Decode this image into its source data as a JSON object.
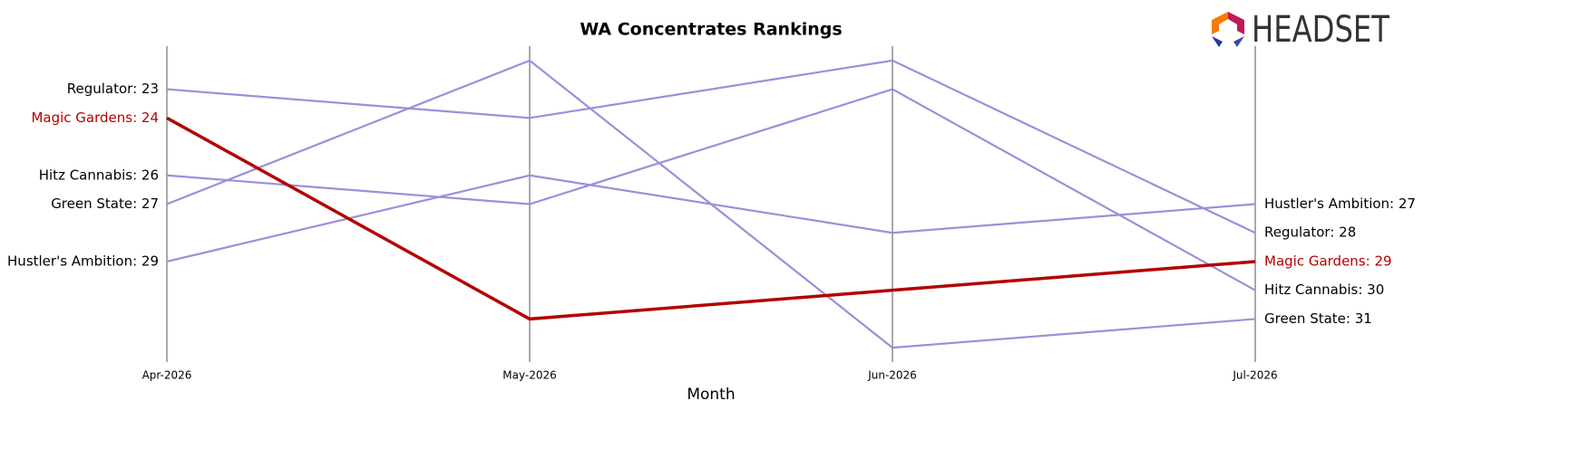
{
  "chart_data": {
    "type": "bump",
    "title": "WA Concentrates Rankings",
    "x_label": "Month",
    "logo": "HEADSET",
    "categories": [
      "Apr-2026",
      "May-2026",
      "Jun-2026",
      "Jul-2026"
    ],
    "ylim": [
      32.5,
      21.5
    ],
    "series": [
      {
        "name": "Regulator",
        "color": "#9b8fd8",
        "values": [
          23,
          24,
          22,
          28
        ],
        "value_labels": [
          "Regulator: 23",
          null,
          null,
          "Regulator: 28"
        ]
      },
      {
        "name": "Hitz Cannabis",
        "color": "#9b8fd8",
        "values": [
          26,
          27,
          23,
          30
        ],
        "value_labels": [
          "Hitz Cannabis: 26",
          null,
          null,
          "Hitz Cannabis: 30"
        ]
      },
      {
        "name": "Green State",
        "color": "#9b8fd8",
        "values": [
          27,
          22,
          32,
          31
        ],
        "value_labels": [
          "Green State: 27",
          null,
          null,
          "Green State: 31"
        ]
      },
      {
        "name": "Hustler's Ambition",
        "color": "#9b8fd8",
        "values": [
          29,
          26,
          28,
          27
        ],
        "value_labels": [
          "Hustler's Ambition: 29",
          null,
          null,
          "Hustler's Ambition: 27"
        ]
      },
      {
        "name": "Magic Gardens",
        "color": "#b30000",
        "emphasis": true,
        "values": [
          24,
          31,
          30,
          29
        ],
        "value_labels": [
          "Magic Gardens: 24",
          null,
          null,
          "Magic Gardens: 29"
        ]
      }
    ]
  }
}
